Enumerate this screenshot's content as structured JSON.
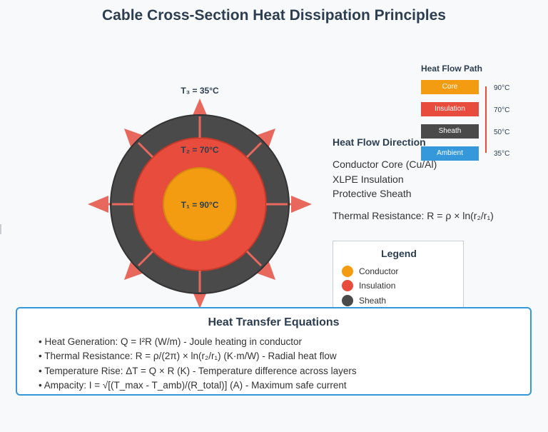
{
  "title": "Cable Cross-Section Heat Dissipation Principles",
  "cable": {
    "t3_label": "T₃ = 35°C",
    "t2_label": "T₂ = 70°C",
    "t1_label": "T₁ = 90°C"
  },
  "heat_flow_direction": "Heat Flow Direction",
  "layers": [
    "Conductor Core (Cu/Al)",
    "XLPE Insulation",
    "Protective Sheath"
  ],
  "thermal_resistance": "Thermal Resistance: R = ρ × ln(r₂/r₁)",
  "heat_flow_path": {
    "title": "Heat Flow Path",
    "stages": [
      {
        "label": "Core",
        "temp": "90°C",
        "color": "#f39c12"
      },
      {
        "label": "Insulation",
        "temp": "70°C",
        "color": "#e74c3c"
      },
      {
        "label": "Sheath",
        "temp": "50°C",
        "color": "#4a4a4a"
      },
      {
        "label": "Ambient",
        "temp": "35°C",
        "color": "#3498db"
      }
    ]
  },
  "legend": {
    "title": "Legend",
    "items": [
      {
        "label": "Conductor",
        "color": "#f39c12"
      },
      {
        "label": "Insulation",
        "color": "#e74c3c"
      },
      {
        "label": "Sheath",
        "color": "#4a4a4a"
      }
    ]
  },
  "equations": {
    "title": "Heat Transfer Equations",
    "items": [
      "• Heat Generation: Q = I²R (W/m) - Joule heating in conductor",
      "• Thermal Resistance: R = ρ/(2π) × ln(r₂/r₁) (K·m/W) - Radial heat flow",
      "• Temperature Rise: ΔT = Q × R (K) - Temperature difference across layers",
      "• Ampacity: I = √[(T_max - T_amb)/(R_total)] (A) - Maximum safe current"
    ]
  },
  "colors": {
    "core": "#f39c12",
    "insulation": "#e74c3c",
    "sheath": "#4a4a4a",
    "arrow": "#e8685d",
    "accent": "#3498db"
  }
}
